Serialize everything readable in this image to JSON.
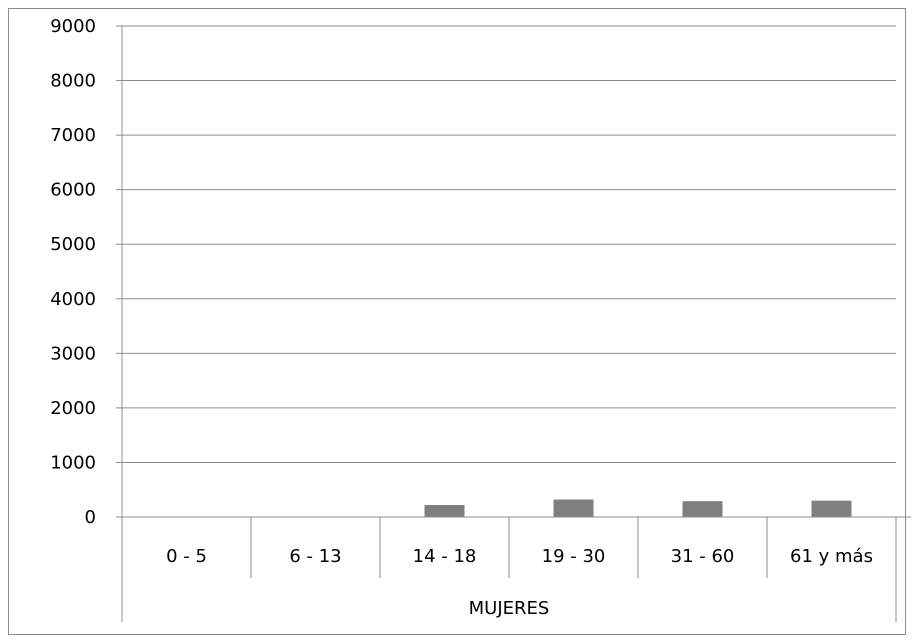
{
  "chart_data": {
    "type": "bar",
    "title": "",
    "xlabel": "",
    "ylabel": "",
    "group_label": "MUJERES",
    "categories": [
      "0 - 5",
      "6 - 13",
      "14 - 18",
      "19 - 30",
      "31 - 60",
      "61 y más"
    ],
    "series": [
      {
        "values": [
          0,
          0,
          220,
          320,
          290,
          300
        ],
        "color": "#7f7f7f"
      }
    ],
    "ylim": [
      0,
      9000
    ],
    "yticks": [
      "0",
      "1000",
      "2000",
      "3000",
      "4000",
      "5000",
      "6000",
      "7000",
      "8000",
      "9000"
    ],
    "grid": true,
    "legend": "none"
  }
}
